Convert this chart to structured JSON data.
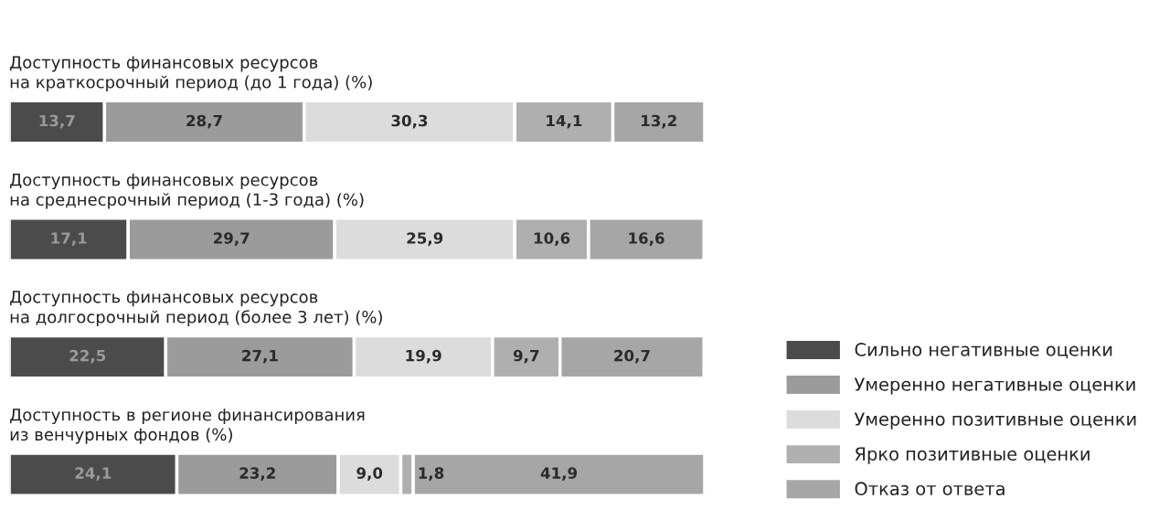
{
  "chart_data": {
    "type": "bar",
    "orientation": "horizontal",
    "stacked": true,
    "legend": "bottom right",
    "categories": [
      "Доступность финансовых ресурсов\nна краткосрочный период (до 1 года) (%)",
      "Доступность финансовых ресурсов\nна среднесрочный период (1-3 года) (%)",
      "Доступность финансовых ресурсов\nна долгосрочный период (более 3 лет) (%)",
      "Доступность в регионе финансирования\nиз венчурных фондов (%)"
    ],
    "series": [
      {
        "name": "Сильно негативные оценки",
        "color": "#4b4b4b",
        "values": [
          13.7,
          17.1,
          22.5,
          24.1
        ],
        "value_labels": [
          "13,7",
          "17,1",
          "22,5",
          "24,1"
        ]
      },
      {
        "name": "Умеренно негативные оценки",
        "color": "#9b9b9b",
        "values": [
          28.7,
          29.7,
          27.1,
          23.2
        ],
        "value_labels": [
          "28,7",
          "29,7",
          "27,1",
          "23,2"
        ]
      },
      {
        "name": "Умеренно позитивные оценки",
        "color": "#dcdcdc",
        "values": [
          30.3,
          25.9,
          19.9,
          9.0
        ],
        "value_labels": [
          "30,3",
          "25,9",
          "19,9",
          "9,0"
        ]
      },
      {
        "name": "Ярко позитивные оценки",
        "color": "#afafaf",
        "values": [
          14.1,
          10.6,
          9.7,
          1.8
        ],
        "value_labels": [
          "14,1",
          "10,6",
          "9,7",
          "1,8"
        ]
      },
      {
        "name": "Отказ от ответа",
        "color": "#a6a6a6",
        "values": [
          13.2,
          16.6,
          20.7,
          41.9
        ],
        "value_labels": [
          "13,2",
          "16,6",
          "20,7",
          "41,9"
        ]
      }
    ]
  }
}
